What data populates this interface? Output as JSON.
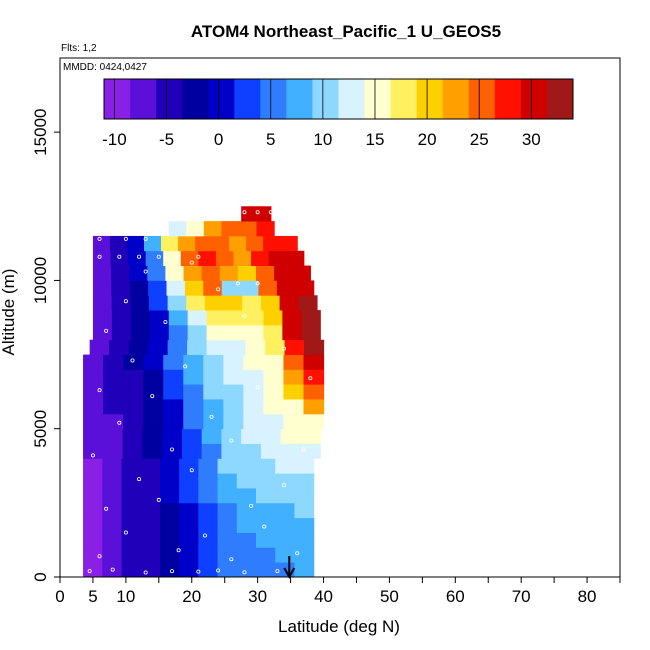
{
  "chart_data": {
    "type": "heatmap",
    "title": "ATOM4 Northeast_Pacific_1 U_GEOS5",
    "flights_text": "Flts: 1,2",
    "mmdd_text": "MMDD: 0424,0427",
    "xlabel": "Latitude (deg N)",
    "ylabel": "Altitude (m)",
    "xlim": [
      0,
      85
    ],
    "ylim": [
      0,
      17500
    ],
    "xticks": [
      0,
      5,
      10,
      20,
      30,
      40,
      50,
      60,
      70,
      80
    ],
    "yticks": [
      0,
      5000,
      10000,
      15000
    ],
    "colorbar": {
      "ticks": [
        -10,
        -5,
        0,
        5,
        10,
        15,
        20,
        25,
        30
      ],
      "range": [
        -11,
        34
      ],
      "colors": [
        "#8a1fe6",
        "#5a10d8",
        "#2000b8",
        "#0000a0",
        "#0000c8",
        "#1040ff",
        "#2f7cff",
        "#40b0ff",
        "#8cd8ff",
        "#d8f2ff",
        "#ffffd0",
        "#fff060",
        "#ffd000",
        "#ffa000",
        "#ff6000",
        "#ff1000",
        "#d00000",
        "#a01818"
      ]
    },
    "layers": [
      {
        "alt_bottom": 0,
        "alt_top": 500,
        "lat_min": 3.5,
        "lat_max": 38.5,
        "values": [
          -9,
          -7,
          -6,
          -4,
          -2,
          0,
          3,
          5,
          6,
          6,
          6,
          7
        ]
      },
      {
        "alt_bottom": 500,
        "alt_top": 1000,
        "lat_min": 3.5,
        "lat_max": 38.5,
        "values": [
          -9,
          -7,
          -6,
          -4,
          -2,
          0,
          3,
          5,
          6,
          6,
          7,
          7
        ]
      },
      {
        "alt_bottom": 1000,
        "alt_top": 1500,
        "lat_min": 3.5,
        "lat_max": 38.5,
        "values": [
          -9,
          -8,
          -6,
          -5,
          -2,
          0,
          3,
          5,
          6,
          7,
          7,
          8
        ]
      },
      {
        "alt_bottom": 1500,
        "alt_top": 2000,
        "lat_min": 3.5,
        "lat_max": 38.5,
        "values": [
          -9,
          -8,
          -6,
          -5,
          -2,
          1,
          3,
          5,
          7,
          7,
          8,
          8
        ]
      },
      {
        "alt_bottom": 2000,
        "alt_top": 2500,
        "lat_min": 3.5,
        "lat_max": 38.5,
        "values": [
          -9,
          -8,
          -6,
          -5,
          -2,
          1,
          3,
          6,
          7,
          8,
          8,
          9
        ]
      },
      {
        "alt_bottom": 2500,
        "alt_top": 3000,
        "lat_min": 3.5,
        "lat_max": 38.5,
        "values": [
          -9,
          -8,
          -6,
          -4,
          -1,
          2,
          4,
          7,
          8,
          9,
          9,
          10
        ]
      },
      {
        "alt_bottom": 3000,
        "alt_top": 3500,
        "lat_min": 3.5,
        "lat_max": 38.5,
        "values": [
          -9,
          -8,
          -6,
          -4,
          -1,
          2,
          5,
          8,
          9,
          10,
          11,
          11
        ]
      },
      {
        "alt_bottom": 3500,
        "alt_top": 4000,
        "lat_min": 3.5,
        "lat_max": 38.5,
        "values": [
          -9,
          -7,
          -6,
          -4,
          -1,
          2,
          6,
          9,
          10,
          11,
          12,
          12
        ]
      },
      {
        "alt_bottom": 4000,
        "alt_top": 4500,
        "lat_min": 3.5,
        "lat_max": 39.5,
        "values": [
          -8,
          -7,
          -5,
          -3,
          0,
          3,
          6,
          9,
          11,
          12,
          13,
          13
        ]
      },
      {
        "alt_bottom": 4500,
        "alt_top": 5000,
        "lat_min": 3.5,
        "lat_max": 39.5,
        "values": [
          -8,
          -7,
          -5,
          -3,
          0,
          3,
          7,
          10,
          12,
          13,
          14,
          14
        ]
      },
      {
        "alt_bottom": 5000,
        "alt_top": 5500,
        "lat_min": 3.5,
        "lat_max": 40.0,
        "values": [
          -8,
          -7,
          -5,
          -3,
          0,
          4,
          8,
          10,
          12,
          13,
          14,
          16
        ]
      },
      {
        "alt_bottom": 5500,
        "alt_top": 6000,
        "lat_min": 3.5,
        "lat_max": 40.0,
        "values": [
          -8,
          -6,
          -4,
          -2,
          1,
          5,
          8,
          11,
          12,
          14,
          15,
          22
        ]
      },
      {
        "alt_bottom": 6000,
        "alt_top": 6500,
        "lat_min": 3.5,
        "lat_max": 40.0,
        "values": [
          -8,
          -6,
          -4,
          -2,
          2,
          6,
          9,
          11,
          13,
          14,
          20,
          26
        ]
      },
      {
        "alt_bottom": 6500,
        "alt_top": 7000,
        "lat_min": 3.5,
        "lat_max": 40.0,
        "values": [
          -7,
          -6,
          -4,
          -2,
          3,
          7,
          10,
          12,
          13,
          15,
          22,
          28
        ]
      },
      {
        "alt_bottom": 7000,
        "alt_top": 7500,
        "lat_min": 3.5,
        "lat_max": 40.0,
        "values": [
          -7,
          -6,
          -3,
          -1,
          4,
          8,
          11,
          13,
          14,
          16,
          25,
          30
        ]
      },
      {
        "alt_bottom": 7500,
        "alt_top": 8000,
        "lat_min": 4.5,
        "lat_max": 40.0,
        "values": [
          -7,
          -5,
          -3,
          0,
          5,
          9,
          12,
          13,
          15,
          17,
          28,
          32
        ]
      },
      {
        "alt_bottom": 8000,
        "alt_top": 8500,
        "lat_min": 5.0,
        "lat_max": 39.5,
        "values": [
          -7,
          -5,
          -3,
          0,
          6,
          11,
          14,
          15,
          16,
          18,
          29,
          33
        ]
      },
      {
        "alt_bottom": 8500,
        "alt_top": 9000,
        "lat_min": 5.0,
        "lat_max": 39.5,
        "values": [
          -7,
          -5,
          -2,
          1,
          7,
          13,
          17,
          18,
          17,
          19,
          30,
          33
        ]
      },
      {
        "alt_bottom": 9000,
        "alt_top": 9500,
        "lat_min": 5.0,
        "lat_max": 39.0,
        "values": [
          -8,
          -5,
          -2,
          2,
          9,
          17,
          20,
          19,
          18,
          20,
          30,
          32
        ]
      },
      {
        "alt_bottom": 9500,
        "alt_top": 10000,
        "lat_min": 5.0,
        "lat_max": 38.5,
        "values": [
          -8,
          -6,
          -2,
          3,
          12,
          21,
          24,
          10,
          9,
          24,
          30,
          31
        ]
      },
      {
        "alt_bottom": 10000,
        "alt_top": 10500,
        "lat_min": 5.0,
        "lat_max": 38.0,
        "values": [
          -8,
          -6,
          -1,
          4,
          14,
          23,
          26,
          22,
          20,
          26,
          30,
          31
        ]
      },
      {
        "alt_bottom": 10500,
        "alt_top": 11000,
        "lat_min": 5.0,
        "lat_max": 37.0,
        "values": [
          -8,
          -6,
          0,
          6,
          16,
          24,
          28,
          24,
          22,
          27,
          30,
          30
        ]
      },
      {
        "alt_bottom": 11000,
        "alt_top": 11500,
        "lat_min": 5.0,
        "lat_max": 36.0,
        "values": [
          -8,
          -6,
          1,
          8,
          18,
          22,
          26,
          24,
          22,
          26,
          28,
          28
        ]
      },
      {
        "alt_bottom": 11500,
        "alt_top": 12000,
        "lat_min": 16.5,
        "lat_max": 32.5,
        "values": [
          12,
          16,
          22,
          26,
          24,
          28
        ]
      },
      {
        "alt_bottom": 12000,
        "alt_top": 12500,
        "lat_min": 27.5,
        "lat_max": 32.0,
        "values": [
          31,
          31,
          30
        ]
      }
    ],
    "observations": [
      {
        "lat": 4.5,
        "alt": 200
      },
      {
        "lat": 8,
        "alt": 250
      },
      {
        "lat": 13,
        "alt": 150
      },
      {
        "lat": 17,
        "alt": 200
      },
      {
        "lat": 21,
        "alt": 180
      },
      {
        "lat": 24,
        "alt": 220
      },
      {
        "lat": 28,
        "alt": 160
      },
      {
        "lat": 33,
        "alt": 200
      },
      {
        "lat": 6,
        "alt": 700
      },
      {
        "lat": 18,
        "alt": 900
      },
      {
        "lat": 26,
        "alt": 600
      },
      {
        "lat": 36,
        "alt": 800
      },
      {
        "lat": 10,
        "alt": 1500
      },
      {
        "lat": 22,
        "alt": 1400
      },
      {
        "lat": 31,
        "alt": 1700
      },
      {
        "lat": 7,
        "alt": 2300
      },
      {
        "lat": 15,
        "alt": 2600
      },
      {
        "lat": 29,
        "alt": 2400
      },
      {
        "lat": 12,
        "alt": 3300
      },
      {
        "lat": 20,
        "alt": 3600
      },
      {
        "lat": 34,
        "alt": 3100
      },
      {
        "lat": 5,
        "alt": 4100
      },
      {
        "lat": 17,
        "alt": 4300
      },
      {
        "lat": 26,
        "alt": 4600
      },
      {
        "lat": 37,
        "alt": 4300
      },
      {
        "lat": 9,
        "alt": 5200
      },
      {
        "lat": 23,
        "alt": 5400
      },
      {
        "lat": 35,
        "alt": 5600
      },
      {
        "lat": 6,
        "alt": 6300
      },
      {
        "lat": 14,
        "alt": 6100
      },
      {
        "lat": 30,
        "alt": 6400
      },
      {
        "lat": 38,
        "alt": 6700
      },
      {
        "lat": 11,
        "alt": 7300
      },
      {
        "lat": 19,
        "alt": 7100
      },
      {
        "lat": 34,
        "alt": 7700
      },
      {
        "lat": 7,
        "alt": 8300
      },
      {
        "lat": 16,
        "alt": 8600
      },
      {
        "lat": 28,
        "alt": 8800
      },
      {
        "lat": 10,
        "alt": 9300
      },
      {
        "lat": 24,
        "alt": 9700
      },
      {
        "lat": 27,
        "alt": 9900
      },
      {
        "lat": 30,
        "alt": 9900
      },
      {
        "lat": 13,
        "alt": 10300
      },
      {
        "lat": 20,
        "alt": 10600
      },
      {
        "lat": 6,
        "alt": 10800
      },
      {
        "lat": 9,
        "alt": 10800
      },
      {
        "lat": 12,
        "alt": 10800
      },
      {
        "lat": 15,
        "alt": 10800
      },
      {
        "lat": 18,
        "alt": 10800
      },
      {
        "lat": 21,
        "alt": 10800
      },
      {
        "lat": 6,
        "alt": 11400
      },
      {
        "lat": 10,
        "alt": 11400
      },
      {
        "lat": 13,
        "alt": 11400
      },
      {
        "lat": 28,
        "alt": 12300
      },
      {
        "lat": 30,
        "alt": 12300
      },
      {
        "lat": 32,
        "alt": 12300
      }
    ],
    "arrow": {
      "lat": 34.8
    }
  }
}
